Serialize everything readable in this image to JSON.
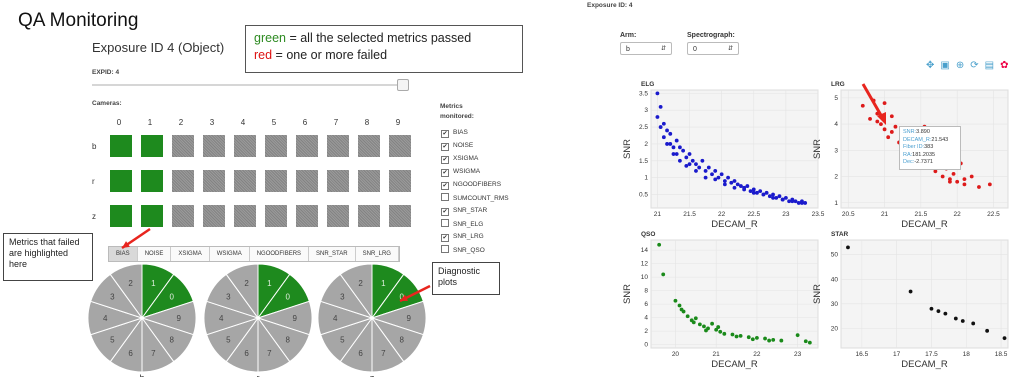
{
  "left": {
    "title": "QA Monitoring",
    "exposure_title": "Exposure ID 4 (Object)",
    "legend": {
      "green_word": "green",
      "green_text": " = all the selected metrics passed",
      "red_word": "red",
      "red_text": " = one or more failed"
    },
    "expid_label": "EXPID: 4",
    "cameras_label": "Cameras:",
    "camera_numbers": [
      "0",
      "1",
      "2",
      "3",
      "4",
      "5",
      "6",
      "7",
      "8",
      "9"
    ],
    "arms": [
      "b",
      "r",
      "z"
    ],
    "passed_cameras": [
      0,
      1
    ],
    "metrics_title_1": "Metrics",
    "metrics_title_2": "monitored:",
    "metrics": [
      {
        "label": "BIAS",
        "checked": true
      },
      {
        "label": "NOISE",
        "checked": true
      },
      {
        "label": "XSIGMA",
        "checked": true
      },
      {
        "label": "WSIGMA",
        "checked": true
      },
      {
        "label": "NGOODFIBERS",
        "checked": true
      },
      {
        "label": "SUMCOUNT_RMS",
        "checked": false
      },
      {
        "label": "SNR_STAR",
        "checked": true
      },
      {
        "label": "SNR_ELG",
        "checked": false
      },
      {
        "label": "SNR_LRG",
        "checked": true
      },
      {
        "label": "SNR_QSO",
        "checked": false
      }
    ],
    "tabs": [
      "BIAS",
      "NOISE",
      "XSIGMA",
      "WSIGMA",
      "NGOODFIBERS",
      "SNR_STAR",
      "SNR_LRG"
    ],
    "active_tab": "BIAS",
    "callout_metrics": "Metrics that failed are highlighted here",
    "callout_diag": "Diagnostic plots",
    "pies": [
      {
        "arm": "b",
        "labels": [
          "1",
          "0",
          "9",
          "8",
          "7",
          "6",
          "5",
          "4",
          "3",
          "2"
        ]
      },
      {
        "arm": "r",
        "labels": [
          "1",
          "0",
          "9",
          "8",
          "7",
          "6",
          "5",
          "4",
          "3",
          "2"
        ]
      },
      {
        "arm": "z",
        "labels": [
          "1",
          "0",
          "9",
          "8",
          "7",
          "6",
          "5",
          "4",
          "3",
          "2"
        ]
      }
    ],
    "colors": {
      "pass": "#1e8a1e",
      "fail": "#a6a6a6",
      "arrow": "#e8251e"
    }
  },
  "right": {
    "exposure_label": "Exposure ID: 4",
    "arm_label": "Arm:",
    "arm_value": "b",
    "spectrograph_label": "Spectrograph:",
    "spectrograph_value": "0",
    "tooltip": [
      {
        "key": "SNR",
        "val": "3.890"
      },
      {
        "key": "DECAM_R",
        "val": "21.543"
      },
      {
        "key": "Fiber ID",
        "val": "383"
      },
      {
        "key": "RA",
        "val": "181.2035"
      },
      {
        "key": "Dec",
        "val": "-2.7371"
      }
    ]
  },
  "chart_data": [
    {
      "type": "scatter",
      "title": "ELG",
      "xlabel": "DECAM_R",
      "ylabel": "SNR",
      "xlim": [
        20.9,
        23.5
      ],
      "ylim": [
        0.1,
        3.6
      ],
      "xticks": [
        21,
        21.5,
        22,
        22.5,
        23,
        23.5
      ],
      "yticks": [
        0.5,
        1,
        1.5,
        2,
        2.5,
        3,
        3.5
      ],
      "color": "#1a1acc",
      "x": [
        21.0,
        21.0,
        21.05,
        21.1,
        21.1,
        21.15,
        21.2,
        21.2,
        21.25,
        21.3,
        21.3,
        21.35,
        21.4,
        21.45,
        21.5,
        21.5,
        21.55,
        21.6,
        21.65,
        21.7,
        21.75,
        21.8,
        21.85,
        21.9,
        21.95,
        22.0,
        22.05,
        22.1,
        22.15,
        22.2,
        22.25,
        22.3,
        22.35,
        22.4,
        22.45,
        22.5,
        22.55,
        22.6,
        22.65,
        22.7,
        22.75,
        22.8,
        22.85,
        22.9,
        22.95,
        23.0,
        23.05,
        23.1,
        23.15,
        23.2,
        23.25,
        23.3,
        21.05,
        21.15,
        21.25,
        21.35,
        21.45,
        21.6,
        21.75,
        21.9,
        22.05,
        22.2,
        22.35,
        22.5,
        22.65,
        22.8,
        22.95,
        23.1,
        23.25
      ],
      "y": [
        3.5,
        2.8,
        3.1,
        2.6,
        2.2,
        2.4,
        2.0,
        2.3,
        1.9,
        2.1,
        1.7,
        1.9,
        1.8,
        1.6,
        1.7,
        1.4,
        1.5,
        1.4,
        1.3,
        1.5,
        1.2,
        1.3,
        1.1,
        1.2,
        1.0,
        1.1,
        0.9,
        1.0,
        0.85,
        0.9,
        0.8,
        0.75,
        0.7,
        0.75,
        0.6,
        0.65,
        0.55,
        0.6,
        0.5,
        0.55,
        0.45,
        0.5,
        0.4,
        0.45,
        0.35,
        0.4,
        0.3,
        0.35,
        0.3,
        0.25,
        0.3,
        0.25,
        2.5,
        2.0,
        1.7,
        1.5,
        1.35,
        1.2,
        1.0,
        0.95,
        0.8,
        0.7,
        0.65,
        0.55,
        0.5,
        0.4,
        0.35,
        0.3,
        0.25
      ]
    },
    {
      "type": "scatter",
      "title": "LRG",
      "xlabel": "DECAM_R",
      "ylabel": "SNR",
      "xlim": [
        20.4,
        22.7
      ],
      "ylim": [
        0.8,
        5.3
      ],
      "xticks": [
        20.5,
        21,
        21.5,
        22,
        22.5
      ],
      "yticks": [
        1,
        2,
        3,
        4,
        5
      ],
      "color": "#dd1a1a",
      "x": [
        20.7,
        20.8,
        20.85,
        20.9,
        20.95,
        21.0,
        21.0,
        21.05,
        21.1,
        21.15,
        21.2,
        21.25,
        21.3,
        21.35,
        21.4,
        21.45,
        21.5,
        21.55,
        21.6,
        21.65,
        21.7,
        21.75,
        21.8,
        21.85,
        21.9,
        21.95,
        22.0,
        22.05,
        22.1,
        22.2,
        22.3,
        22.45,
        20.9,
        21.1,
        21.3,
        21.5,
        21.7,
        21.9,
        22.1
      ],
      "y": [
        4.7,
        4.2,
        4.9,
        4.4,
        4.0,
        4.8,
        3.8,
        3.5,
        4.3,
        3.9,
        3.3,
        3.6,
        3.0,
        3.4,
        2.8,
        3.1,
        2.6,
        3.9,
        2.4,
        2.7,
        2.2,
        2.5,
        2.0,
        2.3,
        1.9,
        2.1,
        1.8,
        2.5,
        1.7,
        2.0,
        1.6,
        1.7,
        4.1,
        3.7,
        3.1,
        2.9,
        2.3,
        1.8,
        1.9
      ]
    },
    {
      "type": "scatter",
      "title": "QSO",
      "xlabel": "DECAM_R",
      "ylabel": "SNR",
      "xlim": [
        19.4,
        23.5
      ],
      "ylim": [
        -0.5,
        15.5
      ],
      "xticks": [
        20,
        21,
        22,
        23
      ],
      "yticks": [
        0,
        2,
        4,
        6,
        8,
        10,
        12,
        14
      ],
      "color": "#1a8a1a",
      "x": [
        19.6,
        19.7,
        20.0,
        20.1,
        20.2,
        20.3,
        20.4,
        20.5,
        20.6,
        20.7,
        20.8,
        20.9,
        21.0,
        21.1,
        21.2,
        21.4,
        21.6,
        21.8,
        22.0,
        22.2,
        22.4,
        22.6,
        23.0,
        23.2,
        23.3,
        20.15,
        20.45,
        20.75,
        21.05,
        21.5,
        21.9,
        22.3
      ],
      "y": [
        14.8,
        10.4,
        6.5,
        5.8,
        4.9,
        4.2,
        3.6,
        3.9,
        3.0,
        2.7,
        2.4,
        3.1,
        2.2,
        1.9,
        1.6,
        1.5,
        1.3,
        1.1,
        1.0,
        0.9,
        0.7,
        0.6,
        1.4,
        0.5,
        0.3,
        5.2,
        3.3,
        2.1,
        2.6,
        1.2,
        0.8,
        0.6
      ]
    },
    {
      "type": "scatter",
      "title": "STAR",
      "xlabel": "DECAM_R",
      "ylabel": "SNR",
      "xlim": [
        16.2,
        18.6
      ],
      "ylim": [
        12,
        56
      ],
      "xticks": [
        16.5,
        17,
        17.5,
        18,
        18.5
      ],
      "yticks": [
        20,
        30,
        40,
        50
      ],
      "color": "#111111",
      "x": [
        16.3,
        17.2,
        17.5,
        17.6,
        17.7,
        17.85,
        17.95,
        18.1,
        18.3,
        18.55
      ],
      "y": [
        53,
        35,
        28,
        27,
        26,
        24,
        23,
        22,
        19,
        16
      ]
    }
  ]
}
